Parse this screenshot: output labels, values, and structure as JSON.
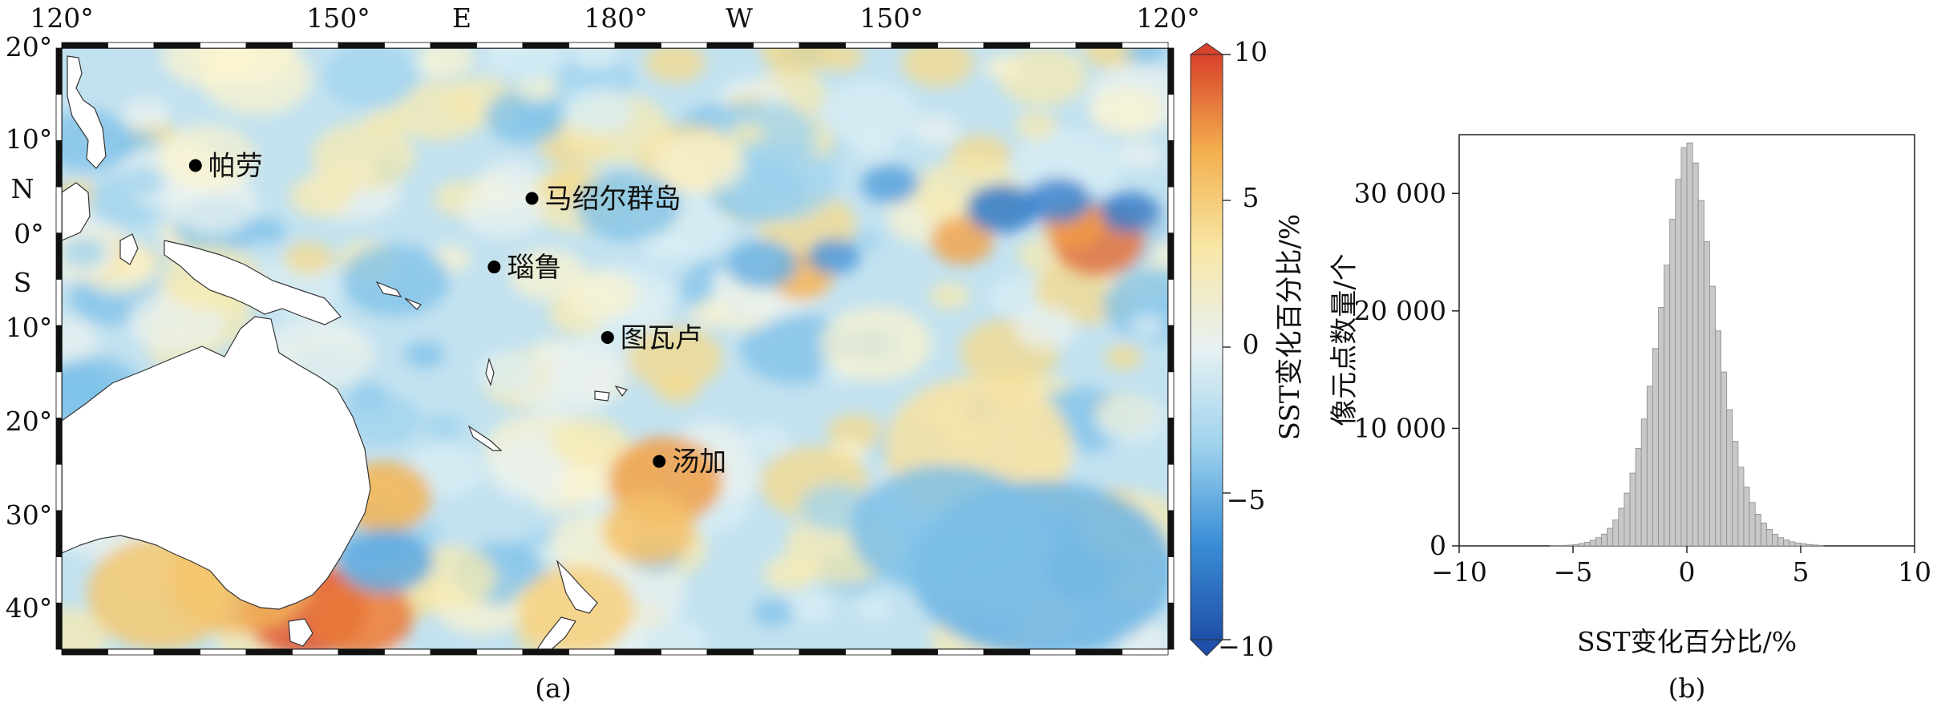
{
  "panel_a": {
    "caption": "(a)",
    "top_ticks": [
      "120°",
      "150°",
      "E",
      "180°",
      "W",
      "150°",
      "120°"
    ],
    "left_ticks": [
      "20°",
      "10°",
      "N",
      "0°",
      "S",
      "10°",
      "20°",
      "30°",
      "40°"
    ],
    "colorbar": {
      "label": "SST变化百分比/%",
      "ticks": [
        "10",
        "5",
        "0",
        "−5",
        "−10"
      ],
      "range": [
        -10,
        10
      ],
      "colors": [
        "#1f4fa8",
        "#3a8fd6",
        "#9fd3ee",
        "#e8f1f2",
        "#f8e7a6",
        "#f4b04f",
        "#d8412a"
      ]
    },
    "places": [
      {
        "name": "帕劳",
        "lon": 134.5,
        "lat": 7.5
      },
      {
        "name": "马绍尔群岛",
        "lon": 171.0,
        "lat": 4.0
      },
      {
        "name": "瑙鲁",
        "lon": 166.9,
        "lat": -3.3
      },
      {
        "name": "图瓦卢",
        "lon": 179.2,
        "lat": -10.8
      },
      {
        "name": "汤加",
        "lon": -175.2,
        "lat": -24.0
      }
    ],
    "land_color": "#ffffff",
    "ocean_base_color": "#b8dcef"
  },
  "panel_b": {
    "caption": "(b)",
    "xlabel": "SST变化百分比/%",
    "ylabel": "像元点数量/个"
  },
  "chart_data": [
    {
      "type": "heatmap",
      "title": "",
      "description_axes": "map of SST change percentage, longitude 120°E to 120°W, latitude 20°N to ~44°S",
      "xlim_lon": [
        120,
        240
      ],
      "ylim_lat": [
        -44,
        20
      ],
      "color_range": [
        -10,
        10
      ],
      "colorbar_label": "SST变化百分比/%"
    },
    {
      "type": "bar",
      "title": "",
      "xlabel": "SST变化百分比/%",
      "ylabel": "像元点数量/个",
      "xlim": [
        -10,
        10
      ],
      "ylim": [
        0,
        35000
      ],
      "xticks": [
        "−10",
        "−5",
        "0",
        "5",
        "10"
      ],
      "yticks": [
        "0",
        "10 000",
        "20 000",
        "30 000"
      ],
      "bin_width": 0.25,
      "bin_start": -6,
      "values": [
        10,
        20,
        40,
        70,
        120,
        200,
        320,
        480,
        700,
        1000,
        1500,
        2200,
        3200,
        4500,
        6200,
        8300,
        10800,
        13600,
        16800,
        20300,
        23900,
        27800,
        31200,
        33900,
        34300,
        32600,
        29400,
        25900,
        22100,
        18300,
        14800,
        11600,
        8900,
        6700,
        5000,
        3700,
        2700,
        1950,
        1400,
        1000,
        700,
        500,
        350,
        250,
        180,
        120,
        80,
        50
      ]
    }
  ]
}
